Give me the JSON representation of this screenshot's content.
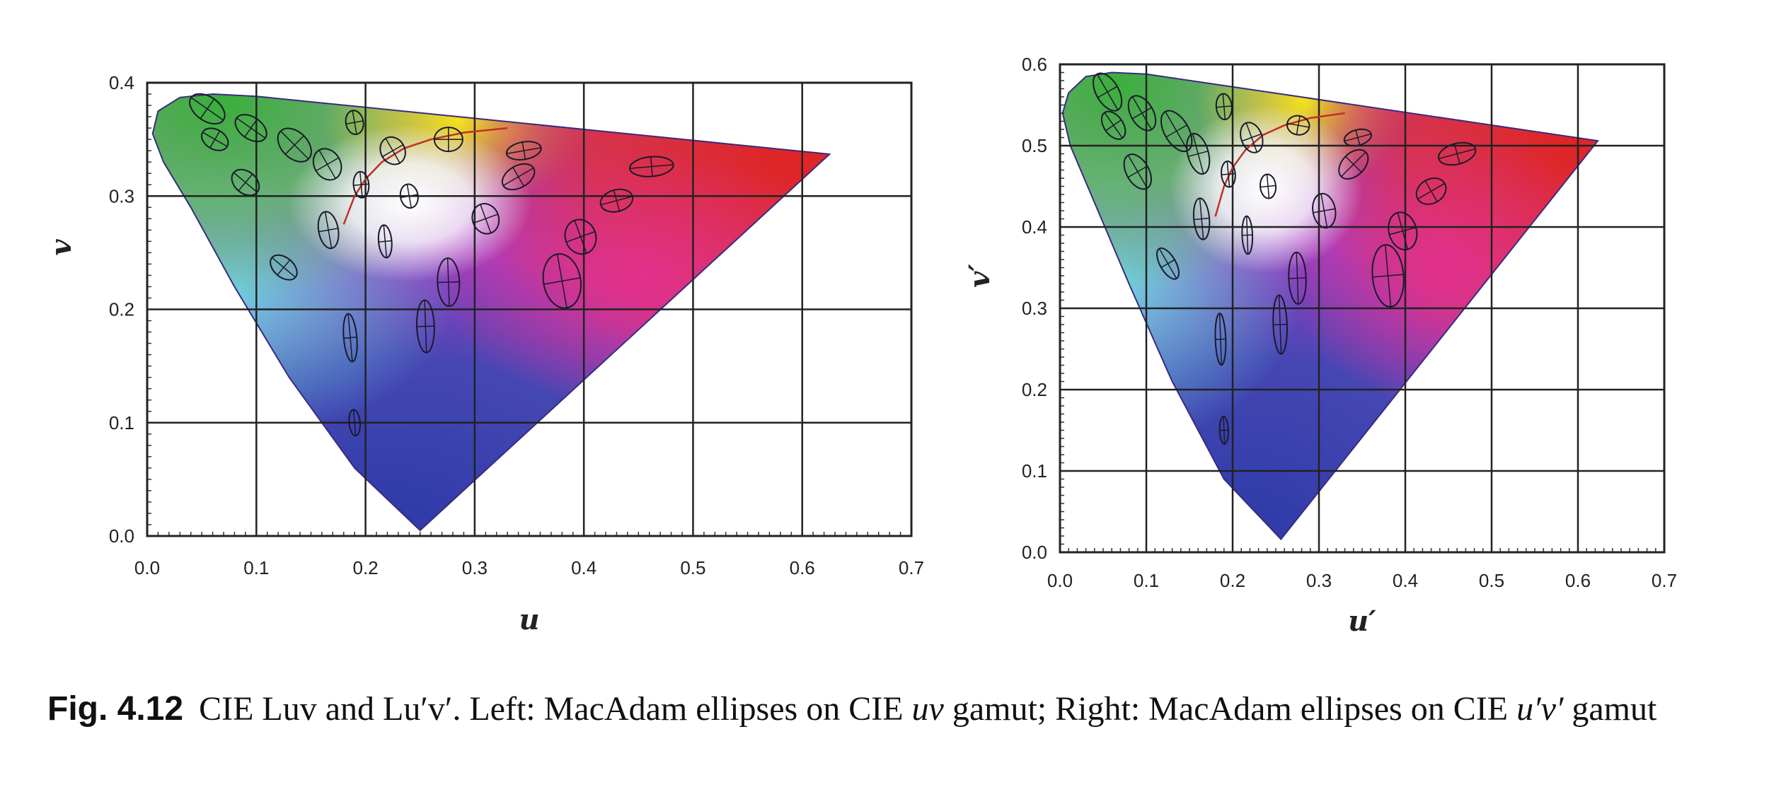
{
  "caption": {
    "label": "Fig. 4.12",
    "text_1": "CIE Luv and Lu′v′. Left: MacAdam ellipses on CIE ",
    "italic_1": "uv",
    "text_2": " gamut; Right: MacAdam ellipses on CIE ",
    "italic_2": "u′v′",
    "text_3": " gamut"
  },
  "chart_data": [
    {
      "type": "scatter",
      "title": "MacAdam ellipses on CIE uv gamut",
      "xlabel": "u",
      "ylabel": "v",
      "xlim": [
        0,
        0.7
      ],
      "ylim": [
        0,
        0.4
      ],
      "xticks": [
        "0.0",
        "0.1",
        "0.2",
        "0.3",
        "0.4",
        "0.5",
        "0.6",
        "0.7"
      ],
      "yticks": [
        "0.0",
        "0.1",
        "0.2",
        "0.3",
        "0.4"
      ],
      "grid": true,
      "gamut": [
        [
          0.25,
          0.005
        ],
        [
          0.19,
          0.06
        ],
        [
          0.13,
          0.14
        ],
        [
          0.08,
          0.22
        ],
        [
          0.04,
          0.29
        ],
        [
          0.015,
          0.33
        ],
        [
          0.005,
          0.355
        ],
        [
          0.01,
          0.375
        ],
        [
          0.03,
          0.387
        ],
        [
          0.06,
          0.39
        ],
        [
          0.1,
          0.388
        ],
        [
          0.625,
          0.337
        ]
      ],
      "planckian_locus": [
        [
          0.18,
          0.275
        ],
        [
          0.19,
          0.3
        ],
        [
          0.2,
          0.315
        ],
        [
          0.215,
          0.33
        ],
        [
          0.235,
          0.342
        ],
        [
          0.26,
          0.35
        ],
        [
          0.29,
          0.356
        ],
        [
          0.33,
          0.36
        ]
      ],
      "ellipses": [
        [
          0.055,
          0.377,
          0.018,
          0.011,
          35
        ],
        [
          0.095,
          0.36,
          0.016,
          0.01,
          35
        ],
        [
          0.135,
          0.345,
          0.018,
          0.012,
          45
        ],
        [
          0.165,
          0.328,
          0.015,
          0.012,
          60
        ],
        [
          0.062,
          0.35,
          0.013,
          0.009,
          30
        ],
        [
          0.09,
          0.312,
          0.014,
          0.01,
          40
        ],
        [
          0.19,
          0.365,
          0.011,
          0.008,
          80
        ],
        [
          0.225,
          0.34,
          0.013,
          0.011,
          60
        ],
        [
          0.276,
          0.35,
          0.013,
          0.011,
          0
        ],
        [
          0.345,
          0.34,
          0.016,
          0.008,
          -10
        ],
        [
          0.462,
          0.326,
          0.02,
          0.009,
          -5
        ],
        [
          0.196,
          0.31,
          0.012,
          0.007,
          85
        ],
        [
          0.24,
          0.3,
          0.011,
          0.008,
          80
        ],
        [
          0.34,
          0.317,
          0.016,
          0.01,
          -30
        ],
        [
          0.43,
          0.296,
          0.015,
          0.01,
          -15
        ],
        [
          0.166,
          0.27,
          0.017,
          0.009,
          80
        ],
        [
          0.218,
          0.26,
          0.015,
          0.006,
          85
        ],
        [
          0.31,
          0.28,
          0.014,
          0.012,
          70
        ],
        [
          0.397,
          0.264,
          0.016,
          0.014,
          70
        ],
        [
          0.125,
          0.237,
          0.014,
          0.009,
          40
        ],
        [
          0.276,
          0.224,
          0.022,
          0.01,
          88
        ],
        [
          0.38,
          0.225,
          0.025,
          0.017,
          80
        ],
        [
          0.255,
          0.185,
          0.024,
          0.008,
          88
        ],
        [
          0.186,
          0.175,
          0.022,
          0.006,
          85
        ],
        [
          0.19,
          0.1,
          0.012,
          0.005,
          85
        ]
      ]
    },
    {
      "type": "scatter",
      "title": "MacAdam ellipses on CIE u′v′ gamut",
      "xlabel": "u′",
      "ylabel": "v′",
      "xlim": [
        0,
        0.7
      ],
      "ylim": [
        0,
        0.6
      ],
      "xticks": [
        "0.0",
        "0.1",
        "0.2",
        "0.3",
        "0.4",
        "0.5",
        "0.6",
        "0.7"
      ],
      "yticks": [
        "0.0",
        "0.1",
        "0.2",
        "0.3",
        "0.4",
        "0.5",
        "0.6"
      ],
      "grid": true,
      "gamut": [
        [
          0.256,
          0.016
        ],
        [
          0.19,
          0.09
        ],
        [
          0.13,
          0.21
        ],
        [
          0.08,
          0.33
        ],
        [
          0.04,
          0.43
        ],
        [
          0.012,
          0.5
        ],
        [
          0.003,
          0.54
        ],
        [
          0.01,
          0.565
        ],
        [
          0.03,
          0.585
        ],
        [
          0.06,
          0.59
        ],
        [
          0.1,
          0.588
        ],
        [
          0.623,
          0.506
        ]
      ],
      "planckian_locus": [
        [
          0.18,
          0.413
        ],
        [
          0.19,
          0.45
        ],
        [
          0.2,
          0.473
        ],
        [
          0.215,
          0.495
        ],
        [
          0.235,
          0.513
        ],
        [
          0.26,
          0.525
        ],
        [
          0.29,
          0.534
        ],
        [
          0.33,
          0.54
        ]
      ],
      "ellipses": [
        [
          0.055,
          0.566,
          0.024,
          0.013,
          60
        ],
        [
          0.095,
          0.54,
          0.022,
          0.013,
          60
        ],
        [
          0.135,
          0.518,
          0.026,
          0.014,
          60
        ],
        [
          0.16,
          0.49,
          0.024,
          0.012,
          75
        ],
        [
          0.062,
          0.525,
          0.018,
          0.011,
          55
        ],
        [
          0.09,
          0.468,
          0.022,
          0.013,
          60
        ],
        [
          0.19,
          0.548,
          0.015,
          0.009,
          85
        ],
        [
          0.222,
          0.51,
          0.018,
          0.012,
          70
        ],
        [
          0.276,
          0.525,
          0.013,
          0.011,
          10
        ],
        [
          0.345,
          0.51,
          0.016,
          0.009,
          -15
        ],
        [
          0.46,
          0.49,
          0.022,
          0.012,
          -15
        ],
        [
          0.195,
          0.465,
          0.015,
          0.008,
          85
        ],
        [
          0.241,
          0.45,
          0.014,
          0.009,
          85
        ],
        [
          0.34,
          0.477,
          0.02,
          0.013,
          -45
        ],
        [
          0.43,
          0.444,
          0.018,
          0.014,
          -30
        ],
        [
          0.164,
          0.41,
          0.024,
          0.009,
          85
        ],
        [
          0.217,
          0.39,
          0.022,
          0.006,
          88
        ],
        [
          0.306,
          0.42,
          0.02,
          0.013,
          80
        ],
        [
          0.397,
          0.395,
          0.022,
          0.016,
          75
        ],
        [
          0.125,
          0.355,
          0.02,
          0.009,
          60
        ],
        [
          0.275,
          0.337,
          0.03,
          0.01,
          88
        ],
        [
          0.38,
          0.34,
          0.036,
          0.018,
          85
        ],
        [
          0.255,
          0.28,
          0.034,
          0.008,
          88
        ],
        [
          0.186,
          0.262,
          0.03,
          0.006,
          88
        ],
        [
          0.19,
          0.15,
          0.016,
          0.005,
          88
        ]
      ]
    }
  ]
}
